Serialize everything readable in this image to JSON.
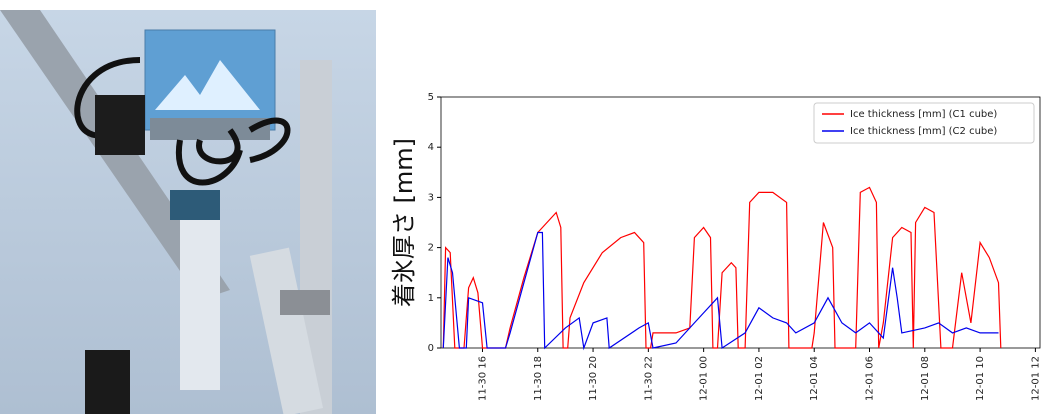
{
  "chart_data": {
    "type": "line",
    "y_label": "着氷厚さ [mm]",
    "xlim": [
      "11-30 14:30",
      "12-01 12:10"
    ],
    "xticks": [
      "11-30 16",
      "11-30 18",
      "11-30 20",
      "11-30 22",
      "12-01 00",
      "12-01 02",
      "12-01 04",
      "12-01 06",
      "12-01 08",
      "12-01 10",
      "12-01 12"
    ],
    "ylim": [
      0,
      5
    ],
    "yticks": [
      0,
      1,
      2,
      3,
      4,
      5
    ],
    "legend": "upper right",
    "series": [
      {
        "name": "Ice thickness [mm] (C1 cube)",
        "color": "#ff0000",
        "x": [
          "11-30 14:35",
          "11-30 14:40",
          "11-30 14:50",
          "11-30 15:00",
          "11-30 15:20",
          "11-30 15:30",
          "11-30 15:40",
          "11-30 15:50",
          "11-30 16:00",
          "11-30 16:50",
          "11-30 17:00",
          "11-30 17:30",
          "11-30 18:00",
          "11-30 18:20",
          "11-30 18:40",
          "11-30 18:50",
          "11-30 18:55",
          "11-30 19:05",
          "11-30 19:10",
          "11-30 19:40",
          "11-30 20:20",
          "11-30 21:00",
          "11-30 21:30",
          "11-30 21:50",
          "11-30 21:55",
          "11-30 22:05",
          "11-30 22:10",
          "11-30 23:00",
          "11-30 23:30",
          "11-30 23:40",
          "12-01 00:00",
          "12-01 00:15",
          "12-01 00:20",
          "12-01 00:30",
          "12-01 00:40",
          "12-01 01:00",
          "12-01 01:10",
          "12-01 01:15",
          "12-01 01:30",
          "12-01 01:40",
          "12-01 02:00",
          "12-01 02:30",
          "12-01 03:00",
          "12-01 03:05",
          "12-01 03:55",
          "12-01 04:00",
          "12-01 04:20",
          "12-01 04:40",
          "12-01 04:45",
          "12-01 05:30",
          "12-01 05:40",
          "12-01 06:00",
          "12-01 06:15",
          "12-01 06:20",
          "12-01 06:30",
          "12-01 06:50",
          "12-01 07:10",
          "12-01 07:30",
          "12-01 07:35",
          "12-01 07:40",
          "12-01 08:00",
          "12-01 08:20",
          "12-01 08:35",
          "12-01 09:00",
          "12-01 09:20",
          "12-01 09:40",
          "12-01 10:00",
          "12-01 10:20",
          "12-01 10:40",
          "12-01 10:45"
        ],
        "values": [
          0,
          2.0,
          1.9,
          0,
          0,
          1.2,
          1.4,
          1.1,
          0,
          0,
          0.4,
          1.4,
          2.3,
          2.5,
          2.7,
          2.4,
          0,
          0,
          0.6,
          1.3,
          1.9,
          2.2,
          2.3,
          2.1,
          0,
          0,
          0.3,
          0.3,
          0.4,
          2.2,
          2.4,
          2.2,
          0,
          0,
          1.5,
          1.7,
          1.6,
          0,
          0,
          2.9,
          3.1,
          3.1,
          2.9,
          0,
          0,
          0.3,
          2.5,
          2.0,
          0,
          0,
          3.1,
          3.2,
          2.9,
          0,
          0.5,
          2.2,
          2.4,
          2.3,
          0,
          2.5,
          2.8,
          2.7,
          0,
          0,
          1.5,
          0.5,
          2.1,
          1.8,
          1.3,
          0
        ]
      },
      {
        "name": "Ice thickness [mm] (C2 cube)",
        "color": "#0000ee",
        "x": [
          "11-30 14:35",
          "11-30 14:45",
          "11-30 14:55",
          "11-30 15:10",
          "11-30 15:25",
          "11-30 15:30",
          "11-30 16:00",
          "11-30 16:10",
          "11-30 16:50",
          "11-30 17:00",
          "11-30 17:30",
          "11-30 18:00",
          "11-30 18:10",
          "11-30 18:15",
          "11-30 19:00",
          "11-30 19:30",
          "11-30 19:40",
          "11-30 20:00",
          "11-30 20:30",
          "11-30 20:35",
          "11-30 21:40",
          "11-30 22:00",
          "11-30 22:10",
          "11-30 23:00",
          "11-30 23:40",
          "12-01 00:00",
          "12-01 00:30",
          "12-01 00:40",
          "12-01 01:30",
          "12-01 02:00",
          "12-01 02:30",
          "12-01 03:00",
          "12-01 03:20",
          "12-01 04:00",
          "12-01 04:30",
          "12-01 05:00",
          "12-01 05:30",
          "12-01 06:00",
          "12-01 06:30",
          "12-01 06:50",
          "12-01 07:00",
          "12-01 07:10",
          "12-01 08:00",
          "12-01 08:30",
          "12-01 09:00",
          "12-01 09:30",
          "12-01 10:00",
          "12-01 10:40"
        ],
        "values": [
          0,
          1.8,
          1.5,
          0,
          0,
          1.0,
          0.9,
          0,
          0,
          0.3,
          1.3,
          2.3,
          2.3,
          0,
          0.4,
          0.6,
          0,
          0.5,
          0.6,
          0,
          0.4,
          0.5,
          0,
          0.1,
          0.5,
          0.7,
          1.0,
          0,
          0.3,
          0.8,
          0.6,
          0.5,
          0.3,
          0.5,
          1.0,
          0.5,
          0.3,
          0.5,
          0.2,
          1.6,
          1.0,
          0.3,
          0.4,
          0.5,
          0.3,
          0.4,
          0.3,
          0.3
        ]
      }
    ]
  }
}
